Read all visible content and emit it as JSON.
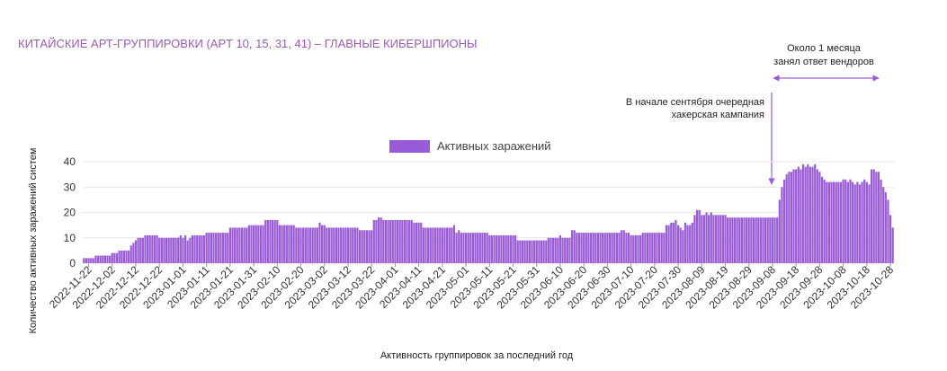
{
  "chart_data": {
    "type": "bar",
    "title": "КИТАЙСКИЕ АРТ-ГРУППИРОВКИ (APT 10, 15, 31, 41) – ГЛАВНЫЕ КИБЕРШПИОНЫ",
    "x_label": "Активность группировок за последний год",
    "y_label": "Количество активных заражений систем",
    "annotations": [
      [
        "В начале сентября очередная",
        "хакерская кампания"
      ],
      [
        "Около 1 месяца",
        "занял ответ вендоров"
      ]
    ],
    "series": [
      {
        "name": "Активных заражений",
        "color": "#9a5bd8",
        "values": [
          2,
          2,
          2,
          2,
          2,
          3,
          3,
          3,
          3,
          3,
          3,
          3,
          4,
          4,
          4,
          5,
          5,
          5,
          5,
          5,
          7,
          8,
          9,
          10,
          10,
          10,
          11,
          11,
          11,
          11,
          11,
          11,
          10,
          10,
          10,
          10,
          10,
          10,
          10,
          10,
          10,
          11,
          10,
          11,
          9,
          10,
          11,
          11,
          11,
          11,
          11,
          11,
          12,
          12,
          12,
          12,
          12,
          12,
          12,
          12,
          12,
          12,
          14,
          14,
          14,
          14,
          14,
          14,
          14,
          14,
          15,
          15,
          15,
          15,
          15,
          15,
          15,
          17,
          17,
          17,
          17,
          17,
          17,
          15,
          15,
          15,
          15,
          15,
          15,
          15,
          14,
          14,
          14,
          14,
          14,
          14,
          14,
          14,
          14,
          14,
          16,
          15,
          15,
          14,
          14,
          14,
          14,
          14,
          14,
          14,
          14,
          14,
          14,
          14,
          14,
          14,
          14,
          13,
          13,
          13,
          13,
          13,
          13,
          17,
          17,
          18,
          18,
          17,
          17,
          17,
          17,
          17,
          17,
          17,
          17,
          17,
          17,
          17,
          17,
          17,
          16,
          16,
          16,
          16,
          14,
          14,
          14,
          14,
          14,
          14,
          14,
          14,
          14,
          14,
          14,
          14,
          14,
          15,
          12,
          13,
          12,
          12,
          12,
          12,
          12,
          12,
          12,
          12,
          12,
          12,
          12,
          12,
          11,
          11,
          11,
          11,
          11,
          11,
          11,
          11,
          11,
          11,
          11,
          11,
          9,
          9,
          9,
          9,
          9,
          9,
          9,
          9,
          9,
          9,
          9,
          9,
          9,
          10,
          10,
          10,
          10,
          10,
          11,
          10,
          10,
          10,
          10,
          13,
          13,
          12,
          12,
          12,
          12,
          12,
          12,
          12,
          12,
          12,
          12,
          12,
          12,
          12,
          12,
          12,
          12,
          12,
          12,
          12,
          13,
          13,
          12,
          12,
          11,
          11,
          11,
          11,
          11,
          12,
          12,
          12,
          12,
          12,
          12,
          12,
          12,
          12,
          12,
          15,
          15,
          16,
          16,
          17,
          15,
          14,
          13,
          16,
          15,
          15,
          16,
          19,
          21,
          21,
          19,
          19,
          20,
          19,
          20,
          19,
          19,
          19,
          19,
          19,
          19,
          18,
          18,
          18,
          18,
          18,
          18,
          18,
          18,
          18,
          18,
          18,
          18,
          18,
          18,
          18,
          18,
          18,
          18,
          18,
          18,
          18,
          18,
          25,
          30,
          33,
          35,
          36,
          36,
          37,
          37,
          38,
          37,
          39,
          38,
          39,
          38,
          38,
          39,
          37,
          36,
          34,
          33,
          32,
          32,
          32,
          32,
          32,
          32,
          32,
          33,
          33,
          32,
          33,
          32,
          31,
          32,
          31,
          32,
          33,
          32,
          31,
          37,
          37,
          36,
          36,
          33,
          30,
          28,
          25,
          19,
          14
        ]
      }
    ],
    "categories": [
      null,
      null,
      "2022-11-22",
      null,
      null,
      null,
      null,
      null,
      null,
      null,
      null,
      null,
      "2022-12-02",
      null,
      null,
      null,
      null,
      null,
      null,
      null,
      null,
      null,
      "2022-12-12",
      null,
      null,
      null,
      null,
      null,
      null,
      null,
      null,
      null,
      "2022-12-22",
      null,
      null,
      null,
      null,
      null,
      null,
      null,
      null,
      null,
      "2023-01-01",
      null,
      null,
      null,
      null,
      null,
      null,
      null,
      null,
      null,
      "2023-01-11",
      null,
      null,
      null,
      null,
      null,
      null,
      null,
      null,
      null,
      "2023-01-21",
      null,
      null,
      null,
      null,
      null,
      null,
      null,
      null,
      null,
      "2023-01-31",
      null,
      null,
      null,
      null,
      null,
      null,
      null,
      null,
      null,
      "2023-02-10",
      null,
      null,
      null,
      null,
      null,
      null,
      null,
      null,
      null,
      "2023-02-20",
      null,
      null,
      null,
      null,
      null,
      null,
      null,
      null,
      null,
      "2023-03-02",
      null,
      null,
      null,
      null,
      null,
      null,
      null,
      null,
      null,
      "2023-03-12",
      null,
      null,
      null,
      null,
      null,
      null,
      null,
      null,
      null,
      "2023-03-22",
      null,
      null,
      null,
      null,
      null,
      null,
      null,
      null,
      null,
      "2023-04-01",
      null,
      null,
      null,
      null,
      null,
      null,
      null,
      null,
      null,
      "2023-04-11",
      null,
      null,
      null,
      null,
      null,
      null,
      null,
      null,
      null,
      "2023-04-21",
      null,
      null,
      null,
      null,
      null,
      null,
      null,
      null,
      null,
      "2023-05-01",
      null,
      null,
      null,
      null,
      null,
      null,
      null,
      null,
      null,
      "2023-05-11",
      null,
      null,
      null,
      null,
      null,
      null,
      null,
      null,
      null,
      "2023-05-21",
      null,
      null,
      null,
      null,
      null,
      null,
      null,
      null,
      null,
      "2023-05-31",
      null,
      null,
      null,
      null,
      null,
      null,
      null,
      null,
      null,
      "2023-06-10",
      null,
      null,
      null,
      null,
      null,
      null,
      null,
      null,
      null,
      "2023-06-20",
      null,
      null,
      null,
      null,
      null,
      null,
      null,
      null,
      null,
      "2023-06-30",
      null,
      null,
      null,
      null,
      null,
      null,
      null,
      null,
      null,
      "2023-07-10",
      null,
      null,
      null,
      null,
      null,
      null,
      null,
      null,
      null,
      "2023-07-20",
      null,
      null,
      null,
      null,
      null,
      null,
      null,
      null,
      null,
      "2023-07-30",
      null,
      null,
      null,
      null,
      null,
      null,
      null,
      null,
      null,
      "2023-08-09",
      null,
      null,
      null,
      null,
      null,
      null,
      null,
      null,
      null,
      "2023-08-19",
      null,
      null,
      null,
      null,
      null,
      null,
      null,
      null,
      null,
      "2023-08-29",
      null,
      null,
      null,
      null,
      null,
      null,
      null,
      null,
      null,
      "2023-09-08",
      null,
      null,
      null,
      null,
      null,
      null,
      null,
      null,
      null,
      "2023-09-18",
      null,
      null,
      null,
      null,
      null,
      null,
      null,
      null,
      null,
      "2023-09-28",
      null,
      null,
      null,
      null,
      null,
      null,
      null,
      null,
      null,
      "2023-10-08",
      null,
      null,
      null,
      null,
      null,
      null,
      null,
      null,
      null,
      "2023-10-18",
      null,
      null,
      null,
      null,
      null,
      null,
      null,
      null,
      null,
      "2023-10-28",
      null
    ],
    "ylim": [
      0,
      40
    ],
    "yticks": [
      0,
      10,
      20,
      30,
      40
    ],
    "grid": true,
    "legend": "top"
  }
}
